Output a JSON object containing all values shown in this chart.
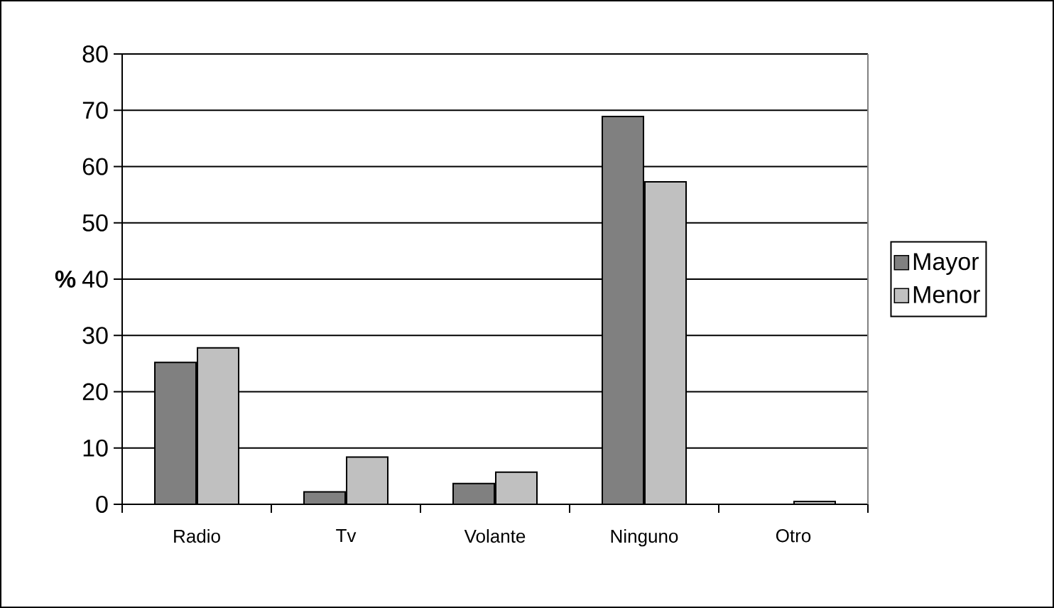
{
  "chart_data": {
    "type": "bar",
    "ylabel": "%",
    "categories": [
      "Radio",
      "Tv",
      "Volante",
      "Ninguno",
      "Otro"
    ],
    "series": [
      {
        "name": "Mayor",
        "color": "#808080",
        "values": [
          25.2,
          2.2,
          3.7,
          68.9,
          null
        ]
      },
      {
        "name": "Menor",
        "color": "#c0c0c0",
        "values": [
          27.8,
          8.4,
          5.7,
          57.3,
          0.5
        ]
      }
    ],
    "ylim": [
      0,
      80
    ],
    "yticks": [
      0,
      10,
      20,
      30,
      40,
      50,
      60,
      70,
      80
    ],
    "grid": "y",
    "legend": "right"
  }
}
